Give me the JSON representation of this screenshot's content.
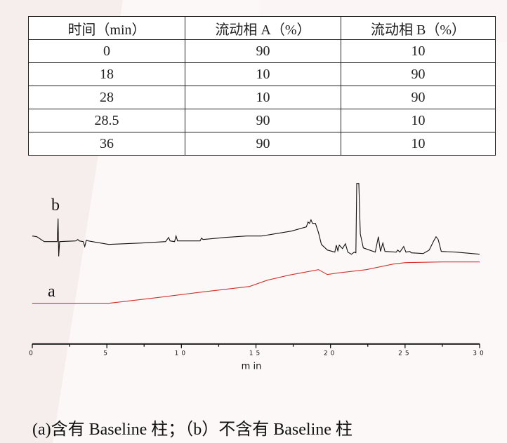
{
  "table": {
    "headers": [
      "时间（min）",
      "流动相 A（%）",
      "流动相 B（%）"
    ],
    "rows": [
      [
        "0",
        "90",
        "10"
      ],
      [
        "18",
        "10",
        "90"
      ],
      [
        "28",
        "10",
        "90"
      ],
      [
        "28.5",
        "90",
        "10"
      ],
      [
        "36",
        "90",
        "10"
      ]
    ]
  },
  "chart_data": {
    "type": "line",
    "xlabel": "m in",
    "xlim": [
      0,
      30
    ],
    "xticks": [
      "0",
      "5",
      "10",
      "15",
      "20",
      "25",
      "30"
    ],
    "grid": false,
    "series": [
      {
        "name": "b",
        "color": "#111111",
        "x": [
          0,
          0.3,
          0.8,
          1.5,
          1.67,
          1.73,
          1.77,
          1.83,
          2.91,
          3.05,
          3.15,
          3.42,
          3.52,
          3.62,
          3.76,
          5.12,
          7.33,
          8.94,
          9.14,
          9.24,
          9.54,
          9.64,
          9.74,
          11.25,
          11.35,
          11.45,
          12.96,
          14.37,
          15.37,
          17.38,
          18.38,
          18.49,
          18.59,
          18.69,
          18.79,
          18.99,
          19.19,
          19.39,
          19.79,
          20.29,
          20.39,
          20.49,
          20.59,
          20.8,
          21.0,
          21.16,
          21.4,
          21.6,
          21.7,
          21.76,
          21.9,
          22.0,
          22.2,
          22.6,
          23.0,
          23.21,
          23.35,
          23.51,
          23.65,
          24.41,
          24.51,
          24.65,
          24.91,
          25.06,
          25.32,
          25.42,
          26.22,
          26.62,
          26.92,
          27.08,
          27.22,
          27.43,
          28.43,
          30
        ],
        "y": [
          100,
          99,
          92,
          92,
          92,
          125,
          71,
          92,
          93,
          95,
          93,
          92,
          85,
          94,
          93,
          88,
          90,
          92,
          98,
          93,
          92,
          100,
          93,
          93,
          97,
          95,
          98,
          100,
          100,
          107,
          113,
          120,
          118,
          123,
          118,
          118,
          105,
          88,
          80,
          77,
          87,
          79,
          87,
          82,
          89,
          77,
          74,
          77,
          76,
          175,
          175,
          103,
          83,
          80,
          77,
          99,
          78,
          90,
          78,
          77,
          80,
          77,
          85,
          77,
          78,
          76,
          75,
          80,
          93,
          99,
          95,
          78,
          77,
          74
        ]
      },
      {
        "name": "a",
        "color": "#d0312d",
        "x": [
          0,
          5.12,
          5.93,
          8.34,
          11.35,
          14.57,
          15.77,
          17.18,
          19.19,
          19.79,
          20.39,
          22.4,
          24.21,
          25.02,
          27.43,
          30
        ],
        "y": [
          4,
          4,
          6,
          12,
          20,
          28,
          37,
          44,
          52,
          45,
          47,
          52,
          60,
          62,
          63,
          63
        ]
      }
    ]
  },
  "caption": "(a)含有 Baseline 柱；（b）不含有 Baseline 柱"
}
